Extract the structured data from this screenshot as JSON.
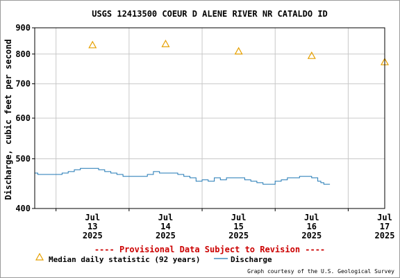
{
  "chart_data": {
    "type": "line",
    "title": "USGS 12413500 COEUR D ALENE RIVER NR CATALDO ID",
    "ylabel": "Discharge, cubic feet per second",
    "xlabel": "",
    "y_scale": "log",
    "ylim": [
      400,
      900
    ],
    "y_ticks": [
      400,
      500,
      600,
      700,
      800,
      900
    ],
    "xlim": [
      "2025-07-12T17:00",
      "2025-07-17T12:00"
    ],
    "x_ticks": [
      {
        "date": "2025-07-13",
        "line1": "Jul",
        "line2": "13",
        "line3": "2025"
      },
      {
        "date": "2025-07-14",
        "line1": "Jul",
        "line2": "14",
        "line3": "2025"
      },
      {
        "date": "2025-07-15",
        "line1": "Jul",
        "line2": "15",
        "line3": "2025"
      },
      {
        "date": "2025-07-16",
        "line1": "Jul",
        "line2": "16",
        "line3": "2025"
      },
      {
        "date": "2025-07-17",
        "line1": "Jul",
        "line2": "17",
        "line3": "2025"
      }
    ],
    "grid": true,
    "series": [
      {
        "name": "Median daily statistic (92 years)",
        "marker": "triangle",
        "color": "#e6a000",
        "points": [
          {
            "x": "2025-07-13T00:00",
            "y": 833
          },
          {
            "x": "2025-07-14T00:00",
            "y": 837
          },
          {
            "x": "2025-07-15T00:00",
            "y": 810
          },
          {
            "x": "2025-07-16T00:00",
            "y": 794
          },
          {
            "x": "2025-07-17T00:00",
            "y": 772
          }
        ]
      },
      {
        "name": "Discharge",
        "color": "#1f77b4",
        "points": [
          {
            "x": "2025-07-12T17:00",
            "y": 469
          },
          {
            "x": "2025-07-12T18:00",
            "y": 466
          },
          {
            "x": "2025-07-12T20:00",
            "y": 466
          },
          {
            "x": "2025-07-13T00:00",
            "y": 466
          },
          {
            "x": "2025-07-13T02:00",
            "y": 469
          },
          {
            "x": "2025-07-13T04:00",
            "y": 472
          },
          {
            "x": "2025-07-13T06:00",
            "y": 476
          },
          {
            "x": "2025-07-13T08:00",
            "y": 479
          },
          {
            "x": "2025-07-13T10:00",
            "y": 479
          },
          {
            "x": "2025-07-13T12:00",
            "y": 479
          },
          {
            "x": "2025-07-13T14:00",
            "y": 476
          },
          {
            "x": "2025-07-13T16:00",
            "y": 472
          },
          {
            "x": "2025-07-13T18:00",
            "y": 469
          },
          {
            "x": "2025-07-13T20:00",
            "y": 466
          },
          {
            "x": "2025-07-13T22:00",
            "y": 462
          },
          {
            "x": "2025-07-14T00:00",
            "y": 462
          },
          {
            "x": "2025-07-14T04:00",
            "y": 462
          },
          {
            "x": "2025-07-14T06:00",
            "y": 466
          },
          {
            "x": "2025-07-14T08:00",
            "y": 472
          },
          {
            "x": "2025-07-14T10:00",
            "y": 469
          },
          {
            "x": "2025-07-14T12:00",
            "y": 469
          },
          {
            "x": "2025-07-14T14:00",
            "y": 469
          },
          {
            "x": "2025-07-14T16:00",
            "y": 466
          },
          {
            "x": "2025-07-14T18:00",
            "y": 462
          },
          {
            "x": "2025-07-14T20:00",
            "y": 459
          },
          {
            "x": "2025-07-14T22:00",
            "y": 452
          },
          {
            "x": "2025-07-15T00:00",
            "y": 455
          },
          {
            "x": "2025-07-15T02:00",
            "y": 452
          },
          {
            "x": "2025-07-15T04:00",
            "y": 459
          },
          {
            "x": "2025-07-15T06:00",
            "y": 455
          },
          {
            "x": "2025-07-15T08:00",
            "y": 459
          },
          {
            "x": "2025-07-15T10:00",
            "y": 459
          },
          {
            "x": "2025-07-15T12:00",
            "y": 459
          },
          {
            "x": "2025-07-15T14:00",
            "y": 455
          },
          {
            "x": "2025-07-15T16:00",
            "y": 452
          },
          {
            "x": "2025-07-15T18:00",
            "y": 449
          },
          {
            "x": "2025-07-15T20:00",
            "y": 446
          },
          {
            "x": "2025-07-15T22:00",
            "y": 446
          },
          {
            "x": "2025-07-16T00:00",
            "y": 452
          },
          {
            "x": "2025-07-16T02:00",
            "y": 455
          },
          {
            "x": "2025-07-16T04:00",
            "y": 459
          },
          {
            "x": "2025-07-16T06:00",
            "y": 459
          },
          {
            "x": "2025-07-16T08:00",
            "y": 462
          },
          {
            "x": "2025-07-16T10:00",
            "y": 462
          },
          {
            "x": "2025-07-16T12:00",
            "y": 459
          },
          {
            "x": "2025-07-16T14:00",
            "y": 452
          },
          {
            "x": "2025-07-16T15:00",
            "y": 449
          },
          {
            "x": "2025-07-16T16:00",
            "y": 446
          },
          {
            "x": "2025-07-16T18:00",
            "y": 446
          }
        ]
      }
    ],
    "banner": "---- Provisional Data Subject to Revision ----",
    "legend": {
      "placement": "bottom",
      "median_label": "Median daily statistic (92 years)",
      "discharge_label": "Discharge"
    },
    "credit": "Graph courtesy of the U.S. Geological Survey",
    "colors": {
      "median": "#e6a000",
      "discharge": "#1f77b4",
      "banner": "#cc0000",
      "grid": "#c8c8c8",
      "axis": "#000000"
    }
  }
}
